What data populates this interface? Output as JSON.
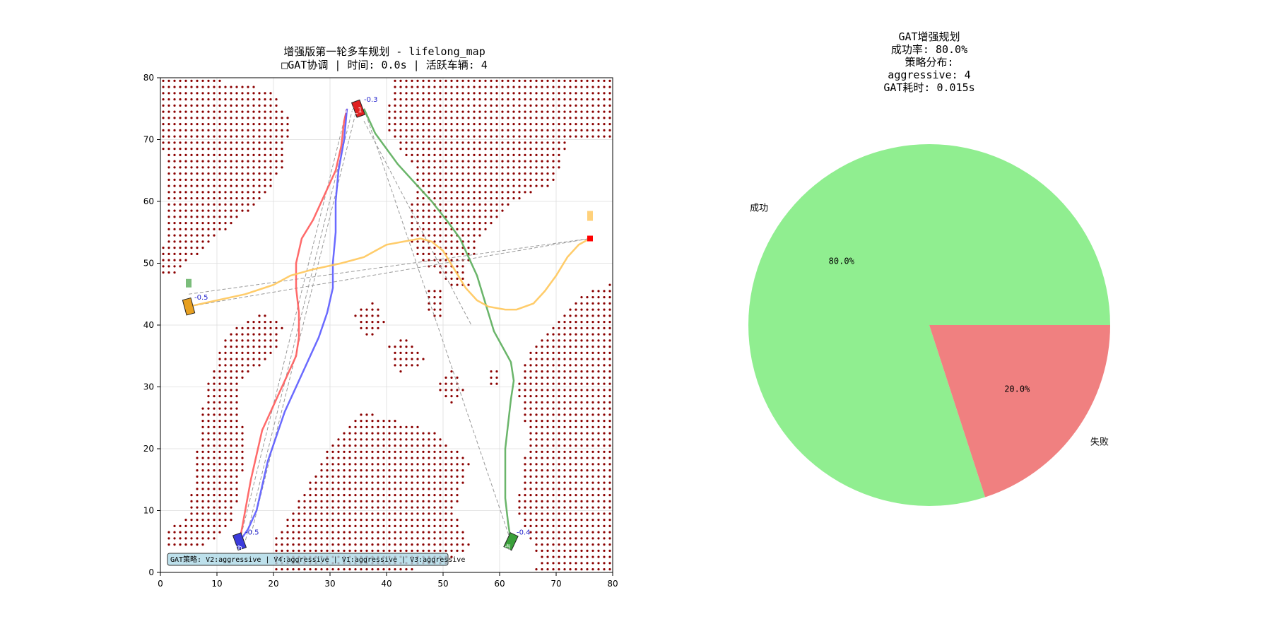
{
  "chart_data": [
    {
      "type": "scatter",
      "title_lines": [
        "增强版第一轮多车规划 - lifelong_map",
        "□GAT协调 | 时间: 0.0s | 活跃车辆: 4"
      ],
      "xlim": [
        0,
        80
      ],
      "ylim": [
        0,
        80
      ],
      "xticks": [
        "0",
        "10",
        "20",
        "30",
        "40",
        "50",
        "60",
        "70",
        "80"
      ],
      "yticks": [
        "0",
        "10",
        "20",
        "30",
        "40",
        "50",
        "60",
        "70",
        "80"
      ],
      "grid": true,
      "obstacle_color": "#8b0000",
      "series": [
        {
          "color": "#ff5a5a",
          "points": [
            [
              14,
              5
            ],
            [
              15,
              10
            ],
            [
              16,
              15
            ],
            [
              17,
              19
            ],
            [
              18,
              23
            ],
            [
              20,
              27
            ],
            [
              22,
              31
            ],
            [
              24,
              35
            ],
            [
              24.5,
              38
            ],
            [
              24.5,
              42
            ],
            [
              24,
              46
            ],
            [
              24,
              50
            ],
            [
              25,
              54
            ],
            [
              27,
              57
            ],
            [
              29,
              61
            ],
            [
              31,
              65
            ],
            [
              32,
              69
            ],
            [
              32.5,
              73
            ],
            [
              33,
              75
            ]
          ]
        },
        {
          "color": "#5a5aff",
          "points": [
            [
              14,
              5
            ],
            [
              15.5,
              7
            ],
            [
              17,
              10
            ],
            [
              18,
              14
            ],
            [
              19,
              18
            ],
            [
              20.5,
              22
            ],
            [
              22,
              26
            ],
            [
              24,
              30
            ],
            [
              26,
              34
            ],
            [
              28,
              38
            ],
            [
              29.5,
              42
            ],
            [
              30.5,
              46
            ],
            [
              30.5,
              50
            ],
            [
              31,
              55
            ],
            [
              31,
              60
            ],
            [
              31.5,
              65
            ],
            [
              32.5,
              70
            ],
            [
              33,
              75
            ]
          ]
        },
        {
          "color": "#5aad5a",
          "points": [
            [
              62,
              5
            ],
            [
              61.5,
              8
            ],
            [
              61,
              12
            ],
            [
              61,
              16
            ],
            [
              61,
              20
            ],
            [
              61.5,
              24
            ],
            [
              62,
              28
            ],
            [
              62.5,
              31
            ],
            [
              62,
              34
            ],
            [
              60.5,
              36.5
            ],
            [
              59,
              39
            ],
            [
              58,
              42
            ],
            [
              57,
              45
            ],
            [
              56,
              48
            ],
            [
              54.5,
              51
            ],
            [
              53,
              54
            ],
            [
              51,
              56.5
            ],
            [
              48,
              60
            ],
            [
              45,
              63
            ],
            [
              42,
              66
            ],
            [
              40,
              68.5
            ],
            [
              38,
              71
            ],
            [
              37,
              73
            ],
            [
              36,
              75
            ]
          ]
        },
        {
          "color": "#ffc65a",
          "points": [
            [
              5,
              43
            ],
            [
              10,
              44
            ],
            [
              15,
              45
            ],
            [
              20,
              46.5
            ],
            [
              23,
              48
            ],
            [
              27,
              49
            ],
            [
              32,
              50
            ],
            [
              36,
              51
            ],
            [
              38,
              52
            ],
            [
              40,
              53
            ],
            [
              43,
              53.5
            ],
            [
              46,
              54
            ],
            [
              48,
              53.5
            ],
            [
              50,
              52
            ],
            [
              52,
              49
            ],
            [
              54,
              46
            ],
            [
              56,
              44
            ],
            [
              58,
              43
            ],
            [
              61,
              42.5
            ],
            [
              63,
              42.5
            ],
            [
              66,
              43.5
            ],
            [
              68,
              45.5
            ],
            [
              70,
              48
            ],
            [
              72,
              51
            ],
            [
              74,
              53
            ],
            [
              76,
              54
            ]
          ]
        }
      ],
      "vehicles": [
        {
          "color": "#e02020",
          "label": "-0.3",
          "tag": "起点_1"
        },
        {
          "color": "#3b3bdc",
          "label": "-0.5",
          "tag": "south"
        },
        {
          "color": "#3aa03a",
          "label": "-0.4",
          "tag": "终点"
        },
        {
          "color": "#e8a020",
          "label": "-0.5",
          "tag": "t"
        }
      ],
      "legend_text": "GAT策略: V2:aggressive | V4:aggressive | V1:aggressive | V3:aggressive"
    },
    {
      "type": "pie",
      "title_lines": [
        "GAT增强规划",
        "成功率: 80.0%",
        "策略分布:",
        "aggressive: 4",
        "GAT耗时: 0.015s"
      ],
      "slices": [
        {
          "label": "成功",
          "value": 80.0,
          "pct": "80.0%",
          "color": "#90ee90"
        },
        {
          "label": "失败",
          "value": 20.0,
          "pct": "20.0%",
          "color": "#f08080"
        }
      ]
    }
  ]
}
